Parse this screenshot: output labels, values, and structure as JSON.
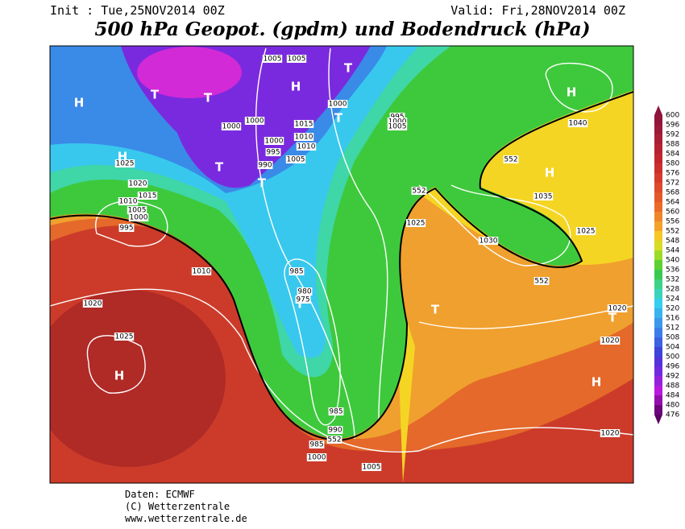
{
  "header": {
    "init": "Init : Tue,25NOV2014 00Z",
    "valid": "Valid: Fri,28NOV2014 00Z",
    "title": "500 hPa Geopot. (gpdm) und Bodendruck (hPa)"
  },
  "colorbar": {
    "labels": [
      "600",
      "596",
      "592",
      "588",
      "584",
      "580",
      "576",
      "572",
      "568",
      "564",
      "560",
      "556",
      "552",
      "548",
      "544",
      "540",
      "536",
      "532",
      "528",
      "524",
      "520",
      "516",
      "512",
      "508",
      "504",
      "500",
      "496",
      "492",
      "488",
      "484",
      "480",
      "476"
    ]
  },
  "map": {
    "centers": [
      "H",
      "T",
      "T",
      "T",
      "T",
      "H",
      "T",
      "T",
      "H",
      "H",
      "H",
      "H",
      "T",
      "T",
      "H",
      "T"
    ],
    "isobars": [
      "1005",
      "1005",
      "1000",
      "995",
      "1000",
      "1005",
      "1000",
      "1000",
      "1015",
      "1010",
      "1010",
      "1000",
      "995",
      "990",
      "1005",
      "1025",
      "1020",
      "1015",
      "1010",
      "1005",
      "1000",
      "995",
      "1010",
      "1020",
      "1025",
      "985",
      "980",
      "975",
      "985",
      "990",
      "985",
      "1000",
      "1005",
      "1025",
      "1030",
      "1035",
      "1040",
      "1025",
      "1020",
      "1020",
      "1020",
      "552",
      "552",
      "552",
      "552"
    ]
  },
  "footer": {
    "lines": [
      "Daten: ECMWF",
      "(C) Wetterzentrale",
      "www.wetterzentrale.de"
    ]
  }
}
